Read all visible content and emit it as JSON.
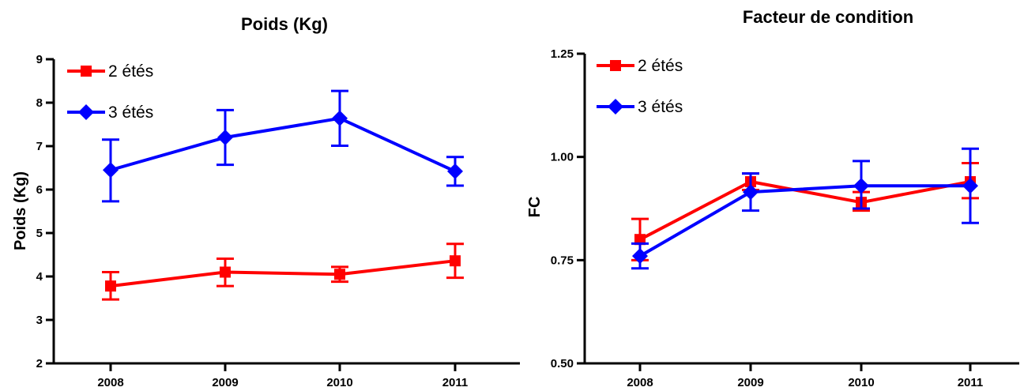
{
  "chart_data": [
    {
      "type": "line",
      "title": "Poids (Kg)",
      "xlabel": "",
      "ylabel": "Poids (Kg)",
      "categories": [
        "2008",
        "2009",
        "2010",
        "2011"
      ],
      "ylim": [
        2,
        9
      ],
      "yticks": [
        "2",
        "3",
        "4",
        "5",
        "6",
        "7",
        "8",
        "9"
      ],
      "grid": false,
      "legend_position": "top-left",
      "series": [
        {
          "name": "2 étés",
          "color": "#ff0000",
          "marker": "square",
          "values": [
            3.78,
            4.1,
            4.05,
            4.36
          ],
          "err_low": [
            3.47,
            3.78,
            3.88,
            3.97
          ],
          "err_high": [
            4.1,
            4.41,
            4.22,
            4.75
          ]
        },
        {
          "name": "3 étés",
          "color": "#0000ff",
          "marker": "diamond",
          "values": [
            6.45,
            7.2,
            7.64,
            6.42
          ],
          "err_low": [
            5.73,
            6.57,
            7.01,
            6.09
          ],
          "err_high": [
            7.15,
            7.83,
            8.27,
            6.75
          ]
        }
      ]
    },
    {
      "type": "line",
      "title": "Facteur de condition",
      "xlabel": "",
      "ylabel": "FC",
      "categories": [
        "2008",
        "2009",
        "2010",
        "2011"
      ],
      "ylim": [
        0.5,
        1.25
      ],
      "yticks": [
        "0.50",
        "0.75",
        "1.00",
        "1.25"
      ],
      "grid": false,
      "legend_position": "top-left",
      "series": [
        {
          "name": "2 étés",
          "color": "#ff0000",
          "marker": "square",
          "values": [
            0.8,
            0.94,
            0.89,
            0.94
          ],
          "err_low": [
            0.75,
            0.92,
            0.87,
            0.9
          ],
          "err_high": [
            0.85,
            0.96,
            0.915,
            0.985
          ]
        },
        {
          "name": "3 étés",
          "color": "#0000ff",
          "marker": "diamond",
          "values": [
            0.76,
            0.915,
            0.93,
            0.93
          ],
          "err_low": [
            0.73,
            0.87,
            0.875,
            0.84
          ],
          "err_high": [
            0.79,
            0.96,
            0.99,
            1.02
          ]
        }
      ]
    }
  ]
}
